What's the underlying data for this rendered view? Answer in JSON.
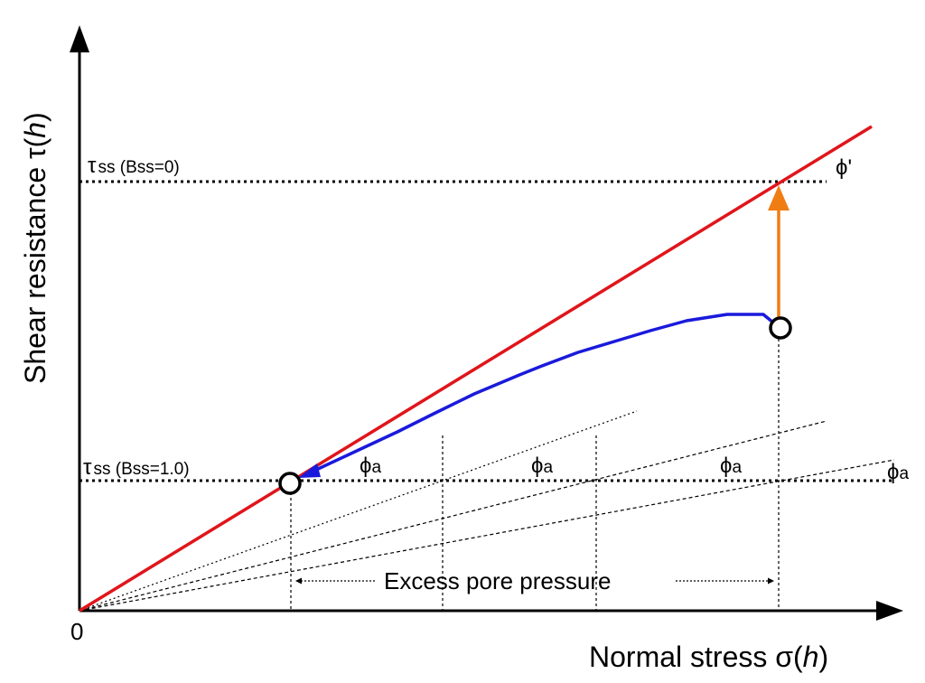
{
  "y_axis": {
    "label": "Shear resistance τ(",
    "var": "h",
    "close": ")"
  },
  "x_axis": {
    "label": "Normal stress σ(",
    "var": "h",
    "close": ")"
  },
  "origin_label": "0",
  "tau_ss_b0": {
    "tau": "τ",
    "text": "ss (Bss=0)"
  },
  "tau_ss_b1": {
    "tau": "τ",
    "text": "ss (Bss=1.0)"
  },
  "phi_prime_label": "ϕ'",
  "phi_a": {
    "sym": "ϕ",
    "sub": "a"
  },
  "excess_pore_pressure": "Excess pore pressure",
  "colors": {
    "failure_line": "#e0151b",
    "stress_path": "#1a1adc",
    "uplift_arrow": "#f07d14",
    "axis": "#000000"
  }
}
